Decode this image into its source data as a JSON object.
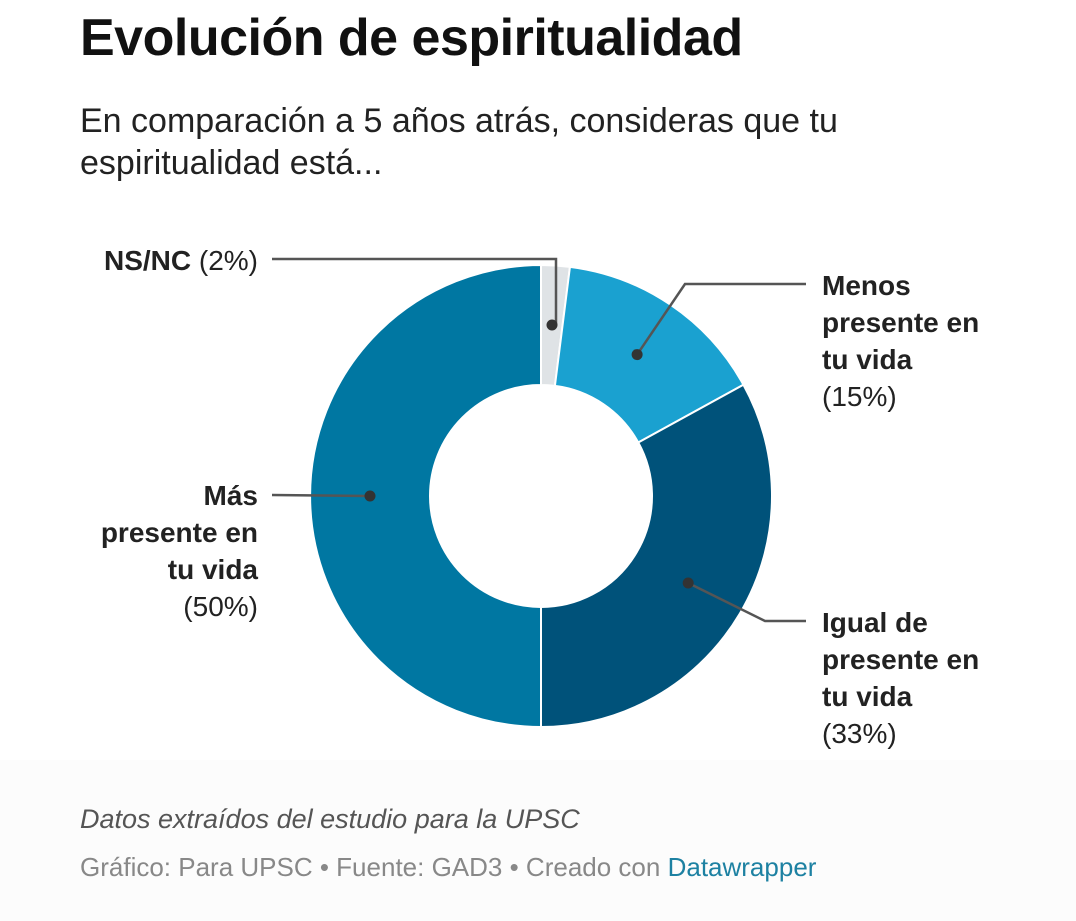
{
  "header": {
    "title": "Evolución de espiritualidad",
    "subtitle": "En comparación a 5 años atrás, consideras que tu espiritualidad está..."
  },
  "chart_data": {
    "type": "pie",
    "variant": "donut",
    "title": "Evolución de espiritualidad",
    "subtitle": "En comparación a 5 años atrás, consideras que tu espiritualidad está...",
    "slices": [
      {
        "name": "NS/NC",
        "value": 2,
        "label_bold": [
          "NS/NC"
        ],
        "label_pct": "(2%)",
        "color": "#dfe3e6"
      },
      {
        "name": "Menos presente en tu vida",
        "value": 15,
        "label_bold": [
          "Menos",
          "presente en",
          "tu vida"
        ],
        "label_pct": "(15%)",
        "color": "#1aa1d0"
      },
      {
        "name": "Igual de presente en tu vida",
        "value": 33,
        "label_bold": [
          "Igual de",
          "presente en",
          "tu vida"
        ],
        "label_pct": "(33%)",
        "color": "#00527a"
      },
      {
        "name": "Más presente en tu vida",
        "value": 50,
        "label_bold": [
          "Más",
          "presente en",
          "tu vida"
        ],
        "label_pct": "(50%)",
        "color": "#0077a2"
      }
    ],
    "start": "top",
    "direction": "clockwise"
  },
  "footer": {
    "notes": "Datos extraídos del estudio para la UPSC",
    "byline_prefix": "Gráfico: Para UPSC • Fuente: GAD3 • Creado con ",
    "byline_link": "Datawrapper",
    "link_color": "#1d81a2"
  }
}
